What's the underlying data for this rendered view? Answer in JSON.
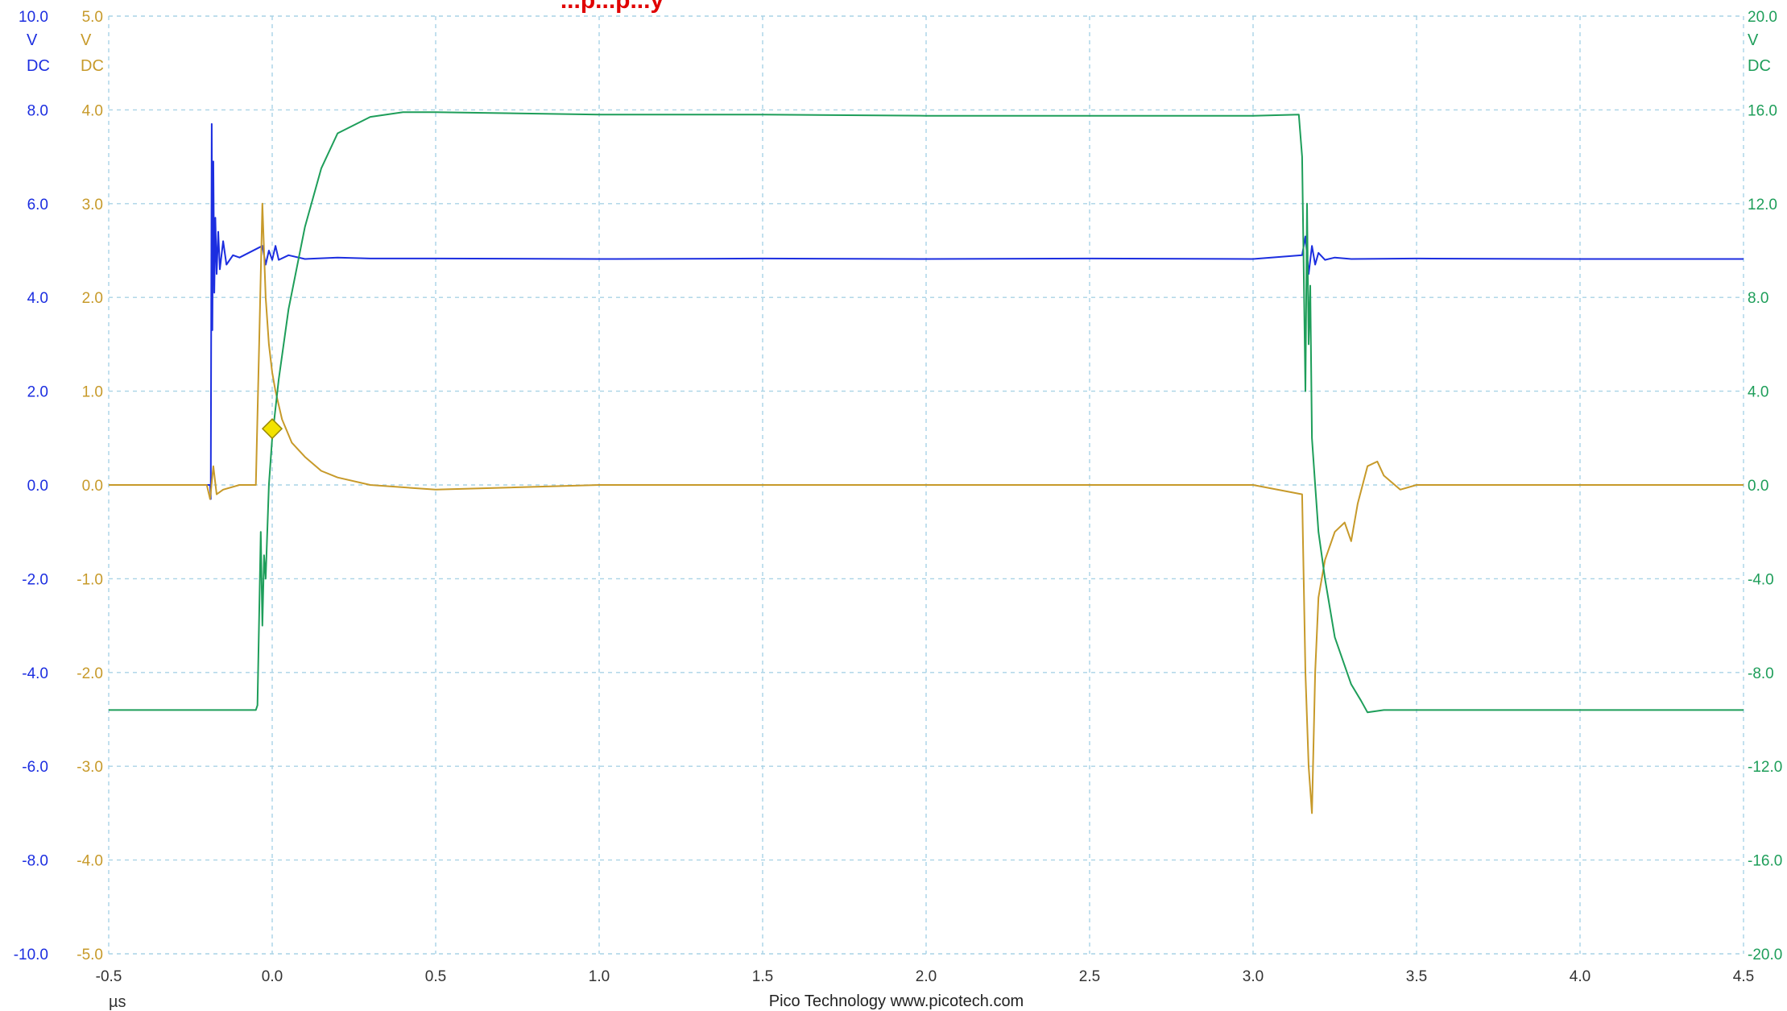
{
  "chart_data": {
    "type": "line",
    "title": "...p...p...y",
    "x_unit": "µs",
    "xlim": [
      -0.5,
      4.5
    ],
    "x_ticks": [
      "-0.5",
      "0.0",
      "0.5",
      "1.0",
      "1.5",
      "2.0",
      "2.5",
      "3.0",
      "3.5",
      "4.0",
      "4.5"
    ],
    "footer": "Pico Technology   www.picotech.com",
    "trigger_marker": {
      "x": 0.0,
      "y": 1.2,
      "axis": "blue",
      "color": "#f2e200"
    },
    "axes": {
      "blue": {
        "unit": "V",
        "coupling": "DC",
        "color": "#1c2ee0",
        "ylim": [
          -10,
          10
        ],
        "ticks": [
          "-10.0",
          "-8.0",
          "-6.0",
          "-4.0",
          "-2.0",
          "0.0",
          "2.0",
          "4.0",
          "6.0",
          "8.0",
          "10.0"
        ]
      },
      "gold": {
        "unit": "V",
        "coupling": "DC",
        "color": "#c79a2a",
        "ylim": [
          -5,
          5
        ],
        "ticks": [
          "-5.0",
          "-4.0",
          "-3.0",
          "-2.0",
          "-1.0",
          "0.0",
          "1.0",
          "2.0",
          "3.0",
          "4.0",
          "5.0"
        ]
      },
      "green": {
        "unit": "V",
        "coupling": "DC",
        "color": "#1e9e5a",
        "ylim": [
          -20,
          20
        ],
        "ticks": [
          "-20.0",
          "-16.0",
          "-12.0",
          "-8.0",
          "-4.0",
          "0.0",
          "4.0",
          "8.0",
          "12.0",
          "16.0",
          "20.0"
        ]
      }
    },
    "grid": true,
    "series": [
      {
        "axis": "blue",
        "color": "#1c2ee0",
        "x": [
          -0.5,
          -0.19,
          -0.188,
          -0.185,
          -0.183,
          -0.18,
          -0.177,
          -0.174,
          -0.17,
          -0.165,
          -0.16,
          -0.15,
          -0.14,
          -0.12,
          -0.1,
          -0.03,
          -0.02,
          -0.01,
          0.0,
          0.01,
          0.02,
          0.05,
          0.1,
          0.2,
          0.3,
          0.5,
          1.0,
          1.5,
          2.0,
          2.5,
          3.0,
          3.15,
          3.16,
          3.17,
          3.18,
          3.19,
          3.2,
          3.22,
          3.25,
          3.3,
          3.5,
          4.0,
          4.5
        ],
        "y": [
          0.0,
          0.0,
          -0.3,
          7.7,
          3.3,
          6.9,
          4.1,
          5.7,
          4.5,
          5.4,
          4.6,
          5.2,
          4.7,
          4.9,
          4.85,
          5.1,
          4.7,
          5.0,
          4.8,
          5.1,
          4.8,
          4.9,
          4.82,
          4.85,
          4.83,
          4.83,
          4.82,
          4.83,
          4.82,
          4.83,
          4.82,
          4.9,
          5.3,
          4.5,
          5.1,
          4.7,
          4.95,
          4.8,
          4.85,
          4.82,
          4.83,
          4.82,
          4.82
        ]
      },
      {
        "axis": "gold",
        "color": "#c79a2a",
        "x": [
          -0.5,
          -0.2,
          -0.19,
          -0.18,
          -0.17,
          -0.15,
          -0.1,
          -0.05,
          -0.04,
          -0.03,
          -0.02,
          -0.01,
          0.0,
          0.01,
          0.03,
          0.06,
          0.1,
          0.15,
          0.2,
          0.3,
          0.5,
          1.0,
          1.5,
          2.0,
          2.5,
          3.0,
          3.15,
          3.16,
          3.17,
          3.18,
          3.19,
          3.2,
          3.22,
          3.25,
          3.28,
          3.3,
          3.32,
          3.35,
          3.38,
          3.4,
          3.45,
          3.5,
          4.0,
          4.5
        ],
        "y": [
          0.0,
          0.0,
          -0.15,
          0.2,
          -0.1,
          -0.05,
          0.0,
          0.0,
          1.5,
          3.0,
          2.0,
          1.5,
          1.2,
          1.0,
          0.7,
          0.45,
          0.3,
          0.15,
          0.08,
          0.0,
          -0.05,
          0.0,
          0.0,
          0.0,
          0.0,
          0.0,
          -0.1,
          -2.0,
          -3.0,
          -3.5,
          -2.0,
          -1.2,
          -0.8,
          -0.5,
          -0.4,
          -0.6,
          -0.2,
          0.2,
          0.25,
          0.1,
          -0.05,
          0.0,
          0.0,
          0.0
        ]
      },
      {
        "axis": "green",
        "color": "#1e9e5a",
        "x": [
          -0.5,
          -0.05,
          -0.045,
          -0.035,
          -0.03,
          -0.025,
          -0.02,
          -0.015,
          -0.01,
          0.0,
          0.02,
          0.05,
          0.1,
          0.15,
          0.2,
          0.3,
          0.4,
          0.5,
          1.0,
          1.5,
          2.0,
          2.5,
          3.0,
          3.14,
          3.15,
          3.16,
          3.165,
          3.17,
          3.175,
          3.18,
          3.19,
          3.2,
          3.22,
          3.25,
          3.3,
          3.33,
          3.35,
          3.4,
          3.5,
          4.0,
          4.5
        ],
        "y": [
          -9.6,
          -9.6,
          -9.4,
          -2.0,
          -6.0,
          -3.0,
          -4.0,
          -2.0,
          0.0,
          2.0,
          4.5,
          7.5,
          11.0,
          13.5,
          15.0,
          15.7,
          15.9,
          15.9,
          15.8,
          15.8,
          15.75,
          15.75,
          15.75,
          15.8,
          14.0,
          4.0,
          12.0,
          6.0,
          8.5,
          2.0,
          0.0,
          -2.0,
          -4.0,
          -6.5,
          -8.5,
          -9.2,
          -9.7,
          -9.6,
          -9.6,
          -9.6,
          -9.6
        ]
      }
    ]
  }
}
